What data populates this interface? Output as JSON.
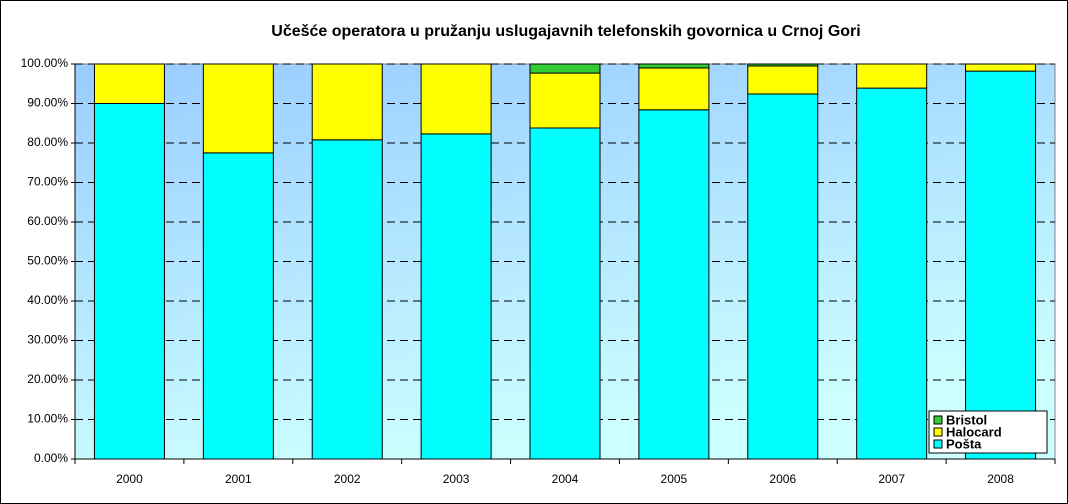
{
  "chart_data": {
    "type": "stacked_bar",
    "title": "Učešće operatora u pružanju uslugajavnih telefonskih govornica u Crnoj Gori",
    "categories": [
      "2000",
      "2001",
      "2002",
      "2003",
      "2004",
      "2005",
      "2006",
      "2007",
      "2008"
    ],
    "series": [
      {
        "name": "Pošta",
        "color": "#00ffff",
        "values": [
          90,
          77.5,
          80.8,
          82.3,
          83.8,
          88.4,
          92.4,
          93.9,
          98.2
        ]
      },
      {
        "name": "Halocard",
        "color": "#ffff00",
        "values": [
          10,
          22.5,
          19.2,
          17.7,
          13.9,
          10.6,
          7.1,
          6.1,
          1.8
        ]
      },
      {
        "name": "Bristol",
        "color": "#33cc33",
        "values": [
          0,
          0,
          0,
          0,
          2.3,
          1,
          0.5,
          0,
          0
        ]
      }
    ],
    "ylim": [
      0,
      100
    ],
    "yticks": [
      {
        "value": 0,
        "label": "0.00%"
      },
      {
        "value": 10,
        "label": "10.00%"
      },
      {
        "value": 20,
        "label": "20.00%"
      },
      {
        "value": 30,
        "label": "30.00%"
      },
      {
        "value": 40,
        "label": "40.00%"
      },
      {
        "value": 50,
        "label": "50.00%"
      },
      {
        "value": 60,
        "label": "60.00%"
      },
      {
        "value": 70,
        "label": "70.00%"
      },
      {
        "value": 80,
        "label": "80.00%"
      },
      {
        "value": 90,
        "label": "90.00%"
      },
      {
        "value": 100,
        "label": "100.00%"
      }
    ],
    "grid": true,
    "legend": "lower right"
  }
}
